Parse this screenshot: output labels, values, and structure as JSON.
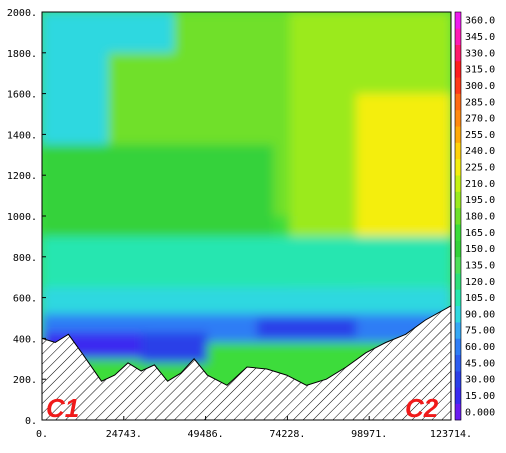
{
  "chart_data": {
    "type": "heatmap",
    "title": "",
    "xlabel": "",
    "ylabel": "",
    "xlim": [
      0,
      123714
    ],
    "ylim": [
      0,
      2000
    ],
    "x_tick_labels": [
      "0.",
      "24743.",
      "49486.",
      "74228.",
      "98971.",
      "123714."
    ],
    "x_tick_values": [
      0,
      24743,
      49486,
      74228,
      98971,
      123714
    ],
    "y_tick_labels": [
      "0.",
      "200.",
      "400.",
      "600.",
      "800.",
      "1000.",
      "1200.",
      "1400.",
      "1600.",
      "1800.",
      "2000."
    ],
    "y_tick_values": [
      0,
      200,
      400,
      600,
      800,
      1000,
      1200,
      1400,
      1600,
      1800,
      2000
    ],
    "colorbar": {
      "min": 0,
      "max": 360,
      "step": 15,
      "tick_labels": [
        "0.000",
        "15.00",
        "30.00",
        "45.00",
        "60.00",
        "75.00",
        "90.00",
        "105.0",
        "120.0",
        "135.0",
        "150.0",
        "165.0",
        "180.0",
        "195.0",
        "210.0",
        "225.0",
        "240.0",
        "255.0",
        "270.0",
        "285.0",
        "300.0",
        "315.0",
        "330.0",
        "345.0",
        "360.0"
      ],
      "colors": [
        "#6a1cf0",
        "#3a2cf0",
        "#2b40e8",
        "#2d5df0",
        "#2f7df5",
        "#35a8f5",
        "#2ed8e0",
        "#27e6b0",
        "#2fe07a",
        "#4ee05a",
        "#34d23a",
        "#3cdc3a",
        "#6fe02a",
        "#9bea1e",
        "#c6f214",
        "#f4ee10",
        "#ffd20a",
        "#ffaa08",
        "#ff8a10",
        "#ff6a14",
        "#ff3a18",
        "#ff1e1e",
        "#ff1a6a",
        "#ff1ab4",
        "#ee1aee"
      ]
    },
    "terrain": {
      "x": [
        0,
        4000,
        8000,
        12000,
        18000,
        22000,
        26000,
        30000,
        34000,
        38000,
        42000,
        46000,
        50000,
        56000,
        62000,
        68000,
        74000,
        80000,
        86000,
        92000,
        98000,
        104000,
        110000,
        116000,
        123714
      ],
      "y": [
        400,
        380,
        420,
        330,
        190,
        220,
        280,
        240,
        270,
        190,
        230,
        300,
        220,
        170,
        260,
        250,
        220,
        170,
        200,
        260,
        330,
        380,
        420,
        490,
        560
      ]
    },
    "fill": "hatched"
  },
  "annotations": {
    "left_label": "C1",
    "right_label": "C2"
  }
}
